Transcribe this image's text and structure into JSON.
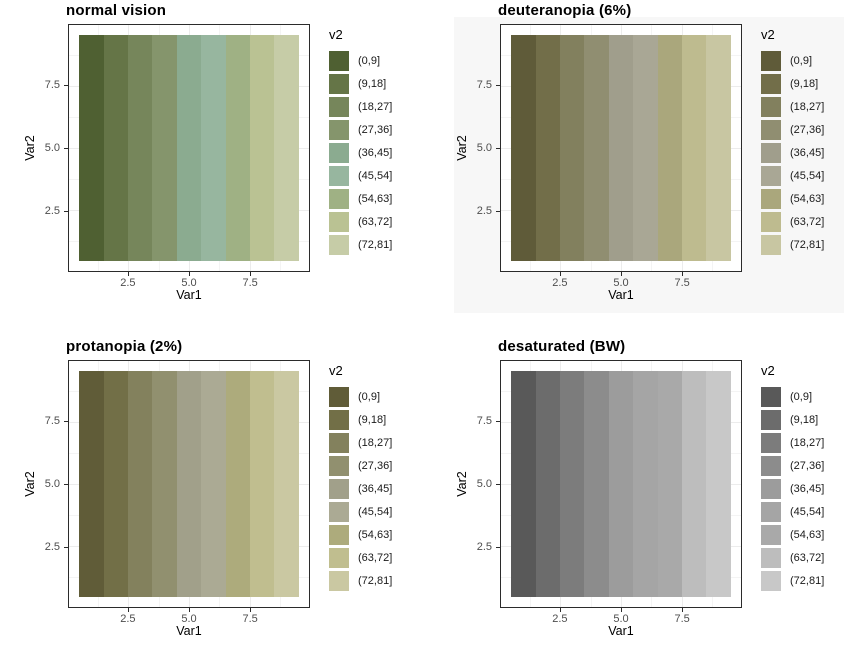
{
  "page": {
    "background": "#ffffff"
  },
  "shared": {
    "legend_title": "v2",
    "legend_bins": [
      "(0,9]",
      "(9,18]",
      "(18,27]",
      "(27,36]",
      "(36,45]",
      "(45,54]",
      "(54,63]",
      "(63,72]",
      "(72,81]"
    ],
    "x_axis": {
      "title": "Var1",
      "tick_labels": [
        "2.5",
        "5.0",
        "7.5"
      ],
      "tick_pos_pct": [
        24.75,
        50,
        75.25
      ],
      "minor_pos_pct": [
        12.12,
        37.37,
        62.63,
        87.88
      ]
    },
    "y_axis": {
      "title": "Var2",
      "tick_labels": [
        "7.5",
        "5.0",
        "2.5"
      ],
      "tick_pos_pct": [
        24.75,
        50,
        75.25
      ],
      "minor_pos_pct": [
        12.12,
        37.37,
        62.63,
        87.88
      ]
    },
    "style": {
      "panel_border": "#2b2b2b",
      "panel_bg": "#ffffff",
      "tick_text": "#4d4d4d",
      "axis_title_text": "#000000",
      "title_text": "#000000",
      "legend_text": "#1a1a1a",
      "grid_major": "#ececec",
      "grid_minor": "#f4f4f4"
    }
  },
  "panels": [
    {
      "title": "normal vision",
      "figure_bg": "#ffffff",
      "palette": [
        "#4f6032",
        "#657547",
        "#76865b",
        "#85956c",
        "#8bab90",
        "#97b69f",
        "#9fb184",
        "#bac293",
        "#c6cca7"
      ]
    },
    {
      "title": "deuteranopia (6%)",
      "figure_bg": "#f7f7f7",
      "palette": [
        "#5f5b39",
        "#726e49",
        "#82805e",
        "#908e71",
        "#a09e8c",
        "#a9a795",
        "#aaa77c",
        "#bebb8f",
        "#c8c6a2"
      ]
    },
    {
      "title": "protanopia (2%)",
      "figure_bg": "#ffffff",
      "palette": [
        "#605c38",
        "#726f47",
        "#83815d",
        "#91906f",
        "#a1a08a",
        "#abaa94",
        "#adab7c",
        "#c0be8f",
        "#cac8a2"
      ]
    },
    {
      "title": "desaturated (BW)",
      "figure_bg": "#ffffff",
      "palette": [
        "#595959",
        "#6c6c6c",
        "#7c7c7c",
        "#8c8c8c",
        "#9c9c9c",
        "#a5a5a5",
        "#a9a9a9",
        "#bdbdbd",
        "#c8c8c8"
      ]
    }
  ],
  "chart_data": [
    {
      "type": "heatmap",
      "title": "normal vision",
      "xlabel": "Var1",
      "ylabel": "Var2",
      "x_values": [
        1,
        2,
        3,
        4,
        5,
        6,
        7,
        8,
        9
      ],
      "y_values": [
        1,
        2,
        3,
        4,
        5,
        6,
        7,
        8,
        9
      ],
      "x_ticks": [
        2.5,
        5.0,
        7.5
      ],
      "y_ticks": [
        2.5,
        5.0,
        7.5
      ],
      "x_range": [
        0.5,
        9.5
      ],
      "y_range": [
        0.5,
        9.5
      ],
      "grid": true,
      "legend_title": "v2",
      "legend_position": "right",
      "bins": [
        "(0,9]",
        "(9,18]",
        "(18,27]",
        "(27,36]",
        "(36,45]",
        "(45,54]",
        "(54,63]",
        "(63,72]",
        "(72,81]"
      ],
      "bin_colors": [
        "#4f6032",
        "#657547",
        "#76865b",
        "#85956c",
        "#8bab90",
        "#97b69f",
        "#9fb184",
        "#bac293",
        "#c6cca7"
      ],
      "fill_rule": "fill depends only on Var1: column Var1=i falls in bin i (v2=9*Var1), giving 9 vertical stripes"
    },
    {
      "type": "heatmap",
      "title": "deuteranopia (6%)",
      "xlabel": "Var1",
      "ylabel": "Var2",
      "x_values": [
        1,
        2,
        3,
        4,
        5,
        6,
        7,
        8,
        9
      ],
      "y_values": [
        1,
        2,
        3,
        4,
        5,
        6,
        7,
        8,
        9
      ],
      "x_ticks": [
        2.5,
        5.0,
        7.5
      ],
      "y_ticks": [
        2.5,
        5.0,
        7.5
      ],
      "x_range": [
        0.5,
        9.5
      ],
      "y_range": [
        0.5,
        9.5
      ],
      "grid": true,
      "legend_title": "v2",
      "legend_position": "right",
      "bins": [
        "(0,9]",
        "(9,18]",
        "(18,27]",
        "(27,36]",
        "(36,45]",
        "(45,54]",
        "(54,63]",
        "(63,72]",
        "(72,81]"
      ],
      "bin_colors": [
        "#5f5b39",
        "#726e49",
        "#82805e",
        "#908e71",
        "#a09e8c",
        "#a9a795",
        "#aaa77c",
        "#bebb8f",
        "#c8c6a2"
      ],
      "fill_rule": "fill depends only on Var1: column Var1=i falls in bin i (v2=9*Var1), giving 9 vertical stripes"
    },
    {
      "type": "heatmap",
      "title": "protanopia (2%)",
      "xlabel": "Var1",
      "ylabel": "Var2",
      "x_values": [
        1,
        2,
        3,
        4,
        5,
        6,
        7,
        8,
        9
      ],
      "y_values": [
        1,
        2,
        3,
        4,
        5,
        6,
        7,
        8,
        9
      ],
      "x_ticks": [
        2.5,
        5.0,
        7.5
      ],
      "y_ticks": [
        2.5,
        5.0,
        7.5
      ],
      "x_range": [
        0.5,
        9.5
      ],
      "y_range": [
        0.5,
        9.5
      ],
      "grid": true,
      "legend_title": "v2",
      "legend_position": "right",
      "bins": [
        "(0,9]",
        "(9,18]",
        "(18,27]",
        "(27,36]",
        "(36,45]",
        "(45,54]",
        "(54,63]",
        "(63,72]",
        "(72,81]"
      ],
      "bin_colors": [
        "#605c38",
        "#726f47",
        "#83815d",
        "#91906f",
        "#a1a08a",
        "#abaa94",
        "#adab7c",
        "#c0be8f",
        "#cac8a2"
      ],
      "fill_rule": "fill depends only on Var1: column Var1=i falls in bin i (v2=9*Var1), giving 9 vertical stripes"
    },
    {
      "type": "heatmap",
      "title": "desaturated (BW)",
      "xlabel": "Var1",
      "ylabel": "Var2",
      "x_values": [
        1,
        2,
        3,
        4,
        5,
        6,
        7,
        8,
        9
      ],
      "y_values": [
        1,
        2,
        3,
        4,
        5,
        6,
        7,
        8,
        9
      ],
      "x_ticks": [
        2.5,
        5.0,
        7.5
      ],
      "y_ticks": [
        2.5,
        5.0,
        7.5
      ],
      "x_range": [
        0.5,
        9.5
      ],
      "y_range": [
        0.5,
        9.5
      ],
      "grid": true,
      "legend_title": "v2",
      "legend_position": "right",
      "bins": [
        "(0,9]",
        "(9,18]",
        "(18,27]",
        "(27,36]",
        "(36,45]",
        "(45,54]",
        "(54,63]",
        "(63,72]",
        "(72,81]"
      ],
      "bin_colors": [
        "#595959",
        "#6c6c6c",
        "#7c7c7c",
        "#8c8c8c",
        "#9c9c9c",
        "#a5a5a5",
        "#a9a9a9",
        "#bdbdbd",
        "#c8c8c8"
      ],
      "fill_rule": "fill depends only on Var1: column Var1=i falls in bin i (v2=9*Var1), giving 9 vertical stripes"
    }
  ]
}
